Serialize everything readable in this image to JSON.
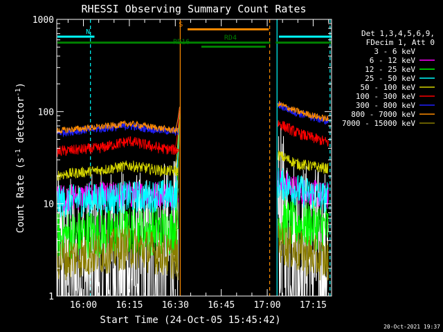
{
  "chart_data": {
    "type": "line",
    "title": "RHESSI Observing Summary Count Rates",
    "xlabel": "Start Time (24-Oct-05 15:45:42)",
    "ylabel": "Count Rate (s",
    "ylabel_sup1": "-1",
    "ylabel_mid": " detector",
    "ylabel_sup2": "-1",
    "ylabel_end": ")",
    "y_scale": "log",
    "ylim": [
      1,
      1000
    ],
    "xlim_minutes": [
      -8.7,
      81
    ],
    "x_ticks": [
      {
        "t": 0,
        "label": "16:00"
      },
      {
        "t": 15,
        "label": "16:15"
      },
      {
        "t": 30,
        "label": "16:30"
      },
      {
        "t": 45,
        "label": "16:45"
      },
      {
        "t": 60,
        "label": "17:00"
      },
      {
        "t": 75,
        "label": "17:15"
      }
    ],
    "y_ticks": [
      {
        "v": 1,
        "label": "1"
      },
      {
        "v": 10,
        "label": "10"
      },
      {
        "v": 100,
        "label": "100"
      },
      {
        "v": 1000,
        "label": "1000"
      }
    ],
    "legend_header": [
      "Det 1,3,4,5,6,9,",
      "FDecim 1, Att 0"
    ],
    "series": [
      {
        "name": "3 - 6 keV",
        "color": "#000000"
      },
      {
        "name": "6 - 12 keV",
        "color": "#ff00ff"
      },
      {
        "name": "12 - 25 keV",
        "color": "#00ff00"
      },
      {
        "name": "25 - 50 keV",
        "color": "#00ffff"
      },
      {
        "name": "50 - 100 keV",
        "color": "#d4d400"
      },
      {
        "name": "100 - 300 keV",
        "color": "#ff0000"
      },
      {
        "name": "300 - 800 keV",
        "color": "#2020ff"
      },
      {
        "name": "800 - 7000 keV",
        "color": "#ff8c00"
      },
      {
        "name": "7000 - 15000 keV",
        "color": "#8b7d00"
      }
    ],
    "series_values": [
      {
        "idx": 0,
        "seg1": [
          [
            -8.5,
            2.0
          ],
          [
            0,
            1.8
          ],
          [
            10,
            2.2
          ],
          [
            20,
            2.0
          ],
          [
            31,
            3.0
          ]
        ],
        "seg2": [
          [
            63.5,
            8.0
          ],
          [
            66,
            4.5
          ],
          [
            70,
            3.0
          ],
          [
            80,
            2.2
          ]
        ],
        "noise": 0.35
      },
      {
        "idx": 1,
        "seg1": [
          [
            -8.5,
            11.5
          ],
          [
            0,
            12.0
          ],
          [
            15,
            12.5
          ],
          [
            31,
            13.0
          ]
        ],
        "seg2": [
          [
            63.5,
            18.0
          ],
          [
            70,
            14.0
          ],
          [
            80,
            12.0
          ]
        ],
        "noise": 0.05
      },
      {
        "idx": 2,
        "seg1": [
          [
            -8.5,
            4.5
          ],
          [
            5,
            4.8
          ],
          [
            15,
            5.0
          ],
          [
            31,
            5.2
          ]
        ],
        "seg2": [
          [
            63.5,
            6.5
          ],
          [
            70,
            6.0
          ],
          [
            80,
            5.5
          ]
        ],
        "noise": 0.09
      },
      {
        "idx": 3,
        "seg1": [
          [
            -8.5,
            10.5
          ],
          [
            0,
            11.0
          ],
          [
            15,
            11.8
          ],
          [
            31,
            12.5
          ]
        ],
        "seg2": [
          [
            63.5,
            17.0
          ],
          [
            70,
            14.0
          ],
          [
            80,
            11.5
          ]
        ],
        "noise": 0.06
      },
      {
        "idx": 4,
        "seg1": [
          [
            -8.5,
            20.5
          ],
          [
            5,
            23.0
          ],
          [
            15,
            26.0
          ],
          [
            25,
            23.0
          ],
          [
            31,
            22.5
          ]
        ],
        "seg2": [
          [
            63.5,
            34.0
          ],
          [
            70,
            27.0
          ],
          [
            80,
            24.0
          ]
        ],
        "noise": 0.02
      },
      {
        "idx": 5,
        "seg1": [
          [
            -8.5,
            37.0
          ],
          [
            5,
            40.0
          ],
          [
            15,
            48.0
          ],
          [
            25,
            40.0
          ],
          [
            31,
            38.0
          ]
        ],
        "seg2": [
          [
            63.5,
            75.0
          ],
          [
            70,
            58.0
          ],
          [
            80,
            46.0
          ]
        ],
        "noise": 0.02
      },
      {
        "idx": 6,
        "seg1": [
          [
            -8.5,
            59.0
          ],
          [
            5,
            65.0
          ],
          [
            15,
            70.0
          ],
          [
            25,
            63.0
          ],
          [
            31,
            60.0
          ]
        ],
        "seg2": [
          [
            63.5,
            118.0
          ],
          [
            70,
            96.0
          ],
          [
            80,
            78.0
          ]
        ],
        "noise": 0.015
      },
      {
        "idx": 7,
        "seg1": [
          [
            -8.5,
            62.0
          ],
          [
            5,
            68.0
          ],
          [
            15,
            74.0
          ],
          [
            25,
            66.0
          ],
          [
            31,
            62.0
          ]
        ],
        "seg2": [
          [
            63.5,
            122.0
          ],
          [
            70,
            100.0
          ],
          [
            80,
            82.0
          ]
        ],
        "noise": 0.012
      },
      {
        "idx": 8,
        "seg1": [
          [
            -8.5,
            2.5
          ],
          [
            5,
            2.9
          ],
          [
            15,
            3.4
          ],
          [
            25,
            2.9
          ],
          [
            31,
            2.5
          ]
        ],
        "seg2": [
          [
            63.5,
            4.0
          ],
          [
            70,
            3.0
          ],
          [
            80,
            2.4
          ]
        ],
        "noise": 0.08
      }
    ],
    "spike_to": 120,
    "spike_start": 29.5,
    "spike_end": 31.5,
    "flags": [
      {
        "label": "N",
        "color": "#00ffff",
        "bars": [
          [
            -8.5,
            3.6
          ],
          [
            63.8,
            81
          ]
        ],
        "level": 650,
        "label_t": 1.5
      },
      {
        "label": "S",
        "color": "#ff8c00",
        "bars": [
          [
            34,
            60.5
          ]
        ],
        "level": 780,
        "label_t": 31.8
      },
      {
        "label": "RD4",
        "color": "#008000",
        "bars": [
          [
            -8.5,
            61.0
          ],
          [
            62.8,
            81
          ]
        ],
        "level": 560,
        "label_t": 48
      },
      {
        "label": "RD16",
        "color": "#008000",
        "bars": [
          [
            38.5,
            59.5
          ]
        ],
        "level": 505,
        "label_t": 32
      }
    ],
    "vlines": [
      {
        "t": 31.6,
        "color": "#ff8c00",
        "style": "solid"
      },
      {
        "t": 63.2,
        "color": "#00ffff",
        "style": "solid"
      },
      {
        "t": 2.3,
        "color": "#00ffff",
        "style": "dashed"
      },
      {
        "t": 80.5,
        "color": "#00ffff",
        "style": "dashed"
      },
      {
        "t": 60.8,
        "color": "#ff8c00",
        "style": "dashed"
      }
    ],
    "timestamp": "20-Oct-2021 19:37"
  }
}
